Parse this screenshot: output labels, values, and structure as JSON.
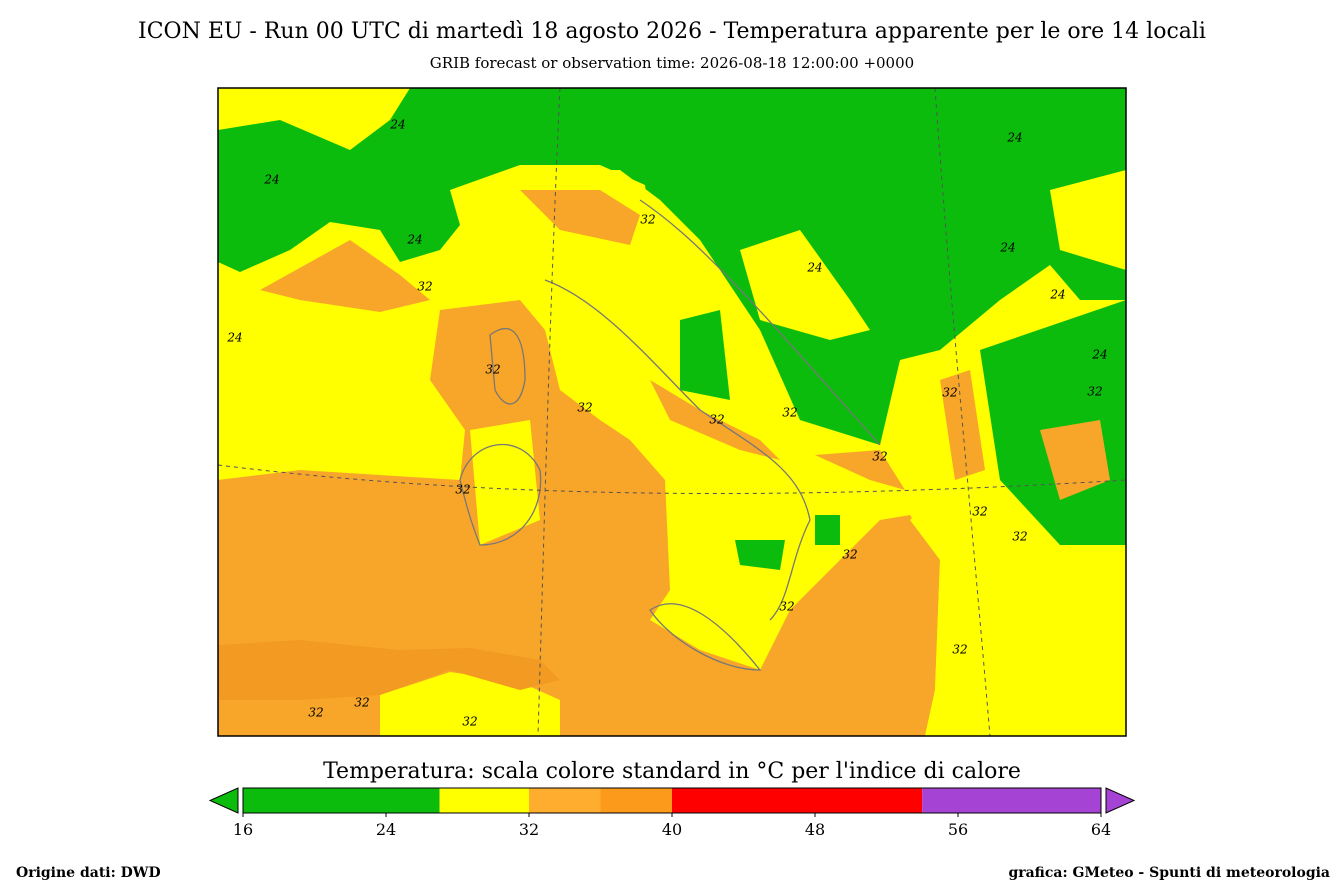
{
  "title": "ICON EU  - Run 00 UTC di martedì 18 agosto 2026 -  Temperatura apparente per le ore 14 locali",
  "subtitle": "GRIB forecast or observation time: 2026-08-18 12:00:00 +0000",
  "map": {
    "contour_labels": [
      24,
      24,
      24,
      24,
      32,
      32,
      24,
      24,
      24,
      24,
      24,
      32,
      32,
      32,
      32,
      32,
      32,
      32,
      32,
      32,
      32,
      32,
      32,
      32,
      32,
      32,
      32
    ]
  },
  "colorbar": {
    "title": "Temperatura: scala colore standard in °C per l'indice di calore",
    "lim": [
      16,
      64
    ],
    "ticks": [
      16,
      24,
      32,
      40,
      48,
      56,
      64
    ],
    "bounds": [
      16,
      27,
      32,
      36,
      40,
      54,
      64
    ],
    "colors": [
      "#0cbc0c",
      "#ffff00",
      "#ffad2f",
      "#fc9a1c",
      "#ff0000",
      "#a543d5"
    ]
  },
  "footer": {
    "left": "Origine dati: DWD",
    "right": "grafica: GMeteo - Spunti di meteorologia"
  }
}
